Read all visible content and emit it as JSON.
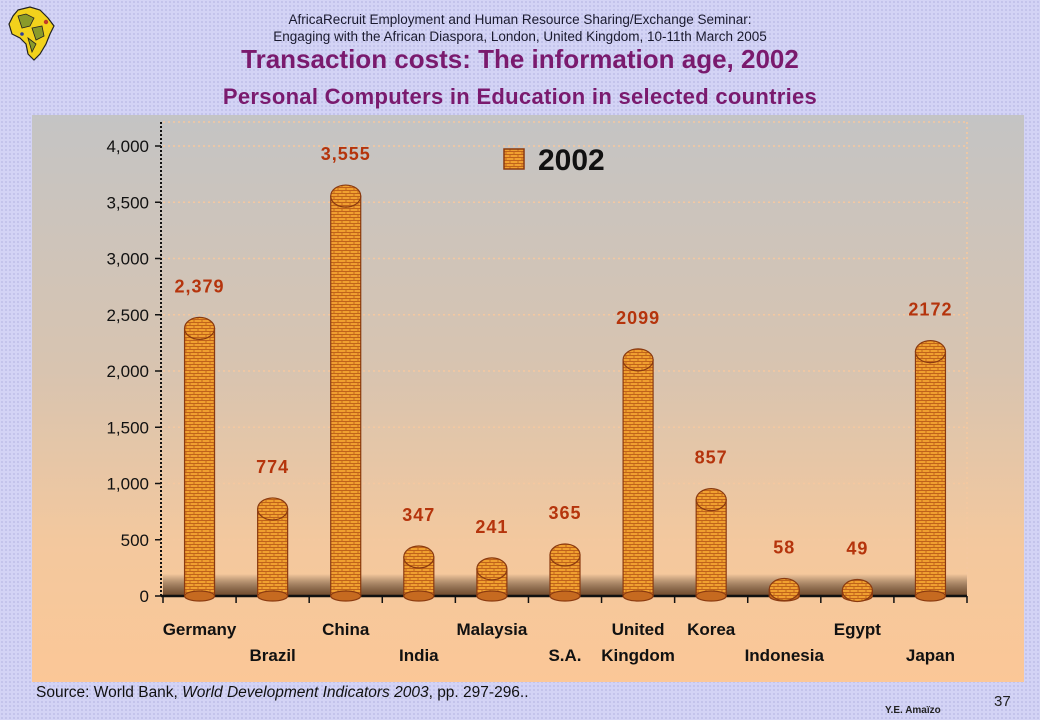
{
  "header": {
    "seminar_line1": "AfricaRecruit Employment and Human Resource Sharing/Exchange Seminar:",
    "seminar_line2": "Engaging with the African Diaspora, London, United Kingdom, 10-11th March 2005",
    "title": "Transaction costs: The information age, 2002",
    "subtitle": "Personal Computers in Education in selected countries"
  },
  "footer": {
    "source_prefix": "Source: World Bank, ",
    "source_italic": "World Development Indicators 2003",
    "source_suffix": ", pp. 297-296..",
    "author": "Y.E. Amaïzo",
    "page_number": "37"
  },
  "colors": {
    "title": "#7a1a6e",
    "bar_fill": "#f0a030",
    "bar_brick": "#c0621a",
    "value_label": "#b5340c",
    "gridline": "#f5c8a0"
  },
  "chart_data": {
    "type": "bar",
    "series": [
      {
        "name": "2002",
        "values": [
          2379,
          774,
          3555,
          347,
          241,
          365,
          2099,
          857,
          58,
          49,
          2172
        ],
        "labels": [
          "2,379",
          "774",
          "3,555",
          "347",
          "241",
          "365",
          "2099",
          "857",
          "58",
          "49",
          "2172"
        ]
      }
    ],
    "categories": [
      {
        "line1": "Germany",
        "line2": ""
      },
      {
        "line1": "",
        "line2": "Brazil"
      },
      {
        "line1": "China",
        "line2": ""
      },
      {
        "line1": "",
        "line2": "India"
      },
      {
        "line1": "Malaysia",
        "line2": ""
      },
      {
        "line1": "",
        "line2": "S.A."
      },
      {
        "line1": "United",
        "line2": "Kingdom"
      },
      {
        "line1": "Korea",
        "line2": ""
      },
      {
        "line1": "",
        "line2": "Indonesia"
      },
      {
        "line1": "Egypt",
        "line2": ""
      },
      {
        "line1": "",
        "line2": "Japan"
      }
    ],
    "yticks": [
      "0",
      "500",
      "1,000",
      "1,500",
      "2,000",
      "2,500",
      "3,000",
      "3,500",
      "4,000"
    ],
    "ylim": [
      0,
      4000
    ],
    "legend": {
      "label": "2002",
      "position": "top-center"
    },
    "grid": true
  }
}
